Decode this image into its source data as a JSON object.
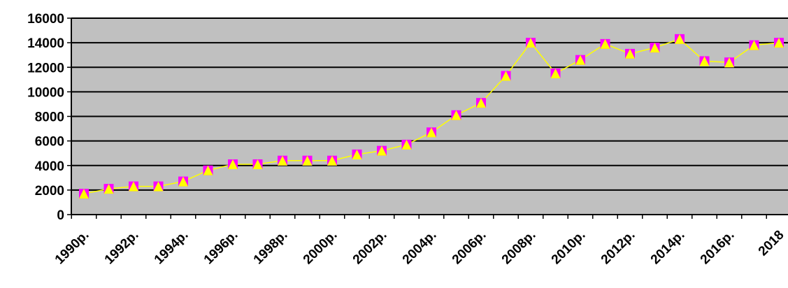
{
  "chart_data": {
    "type": "line",
    "title": "",
    "xlabel": "",
    "ylabel": "",
    "ylim": [
      0,
      16000
    ],
    "yticks": [
      "0",
      "2000",
      "4000",
      "6000",
      "8000",
      "10000",
      "12000",
      "14000",
      "16000"
    ],
    "x_tick_labels": [
      "1990р.",
      "1992р.",
      "1994р.",
      "1996р.",
      "1998р.",
      "2000р.",
      "2002р.",
      "2004р.",
      "2006р.",
      "2008р.",
      "2010р.",
      "2012р.",
      "2014р.",
      "2016р.",
      "2018"
    ],
    "x": [
      1990,
      1991,
      1992,
      1993,
      1994,
      1995,
      1996,
      1997,
      1998,
      1999,
      2000,
      2001,
      2002,
      2003,
      2004,
      2005,
      2006,
      2007,
      2008,
      2009,
      2010,
      2011,
      2012,
      2013,
      2014,
      2015,
      2016,
      2017,
      2018
    ],
    "series": [
      {
        "values": [
          1700,
          2100,
          2300,
          2300,
          2700,
          3600,
          4100,
          4100,
          4400,
          4400,
          4400,
          4900,
          5200,
          5700,
          6700,
          8100,
          9100,
          11300,
          14000,
          11500,
          12600,
          13900,
          13100,
          13600,
          14300,
          12500,
          12400,
          13800,
          14000
        ]
      }
    ],
    "grid": true,
    "plot_background": "#c0c0c0",
    "line_color": "#ffff00",
    "marker_color": "#ffff00",
    "marker_edge_color": "#ff00ff",
    "marker": "triangle"
  }
}
